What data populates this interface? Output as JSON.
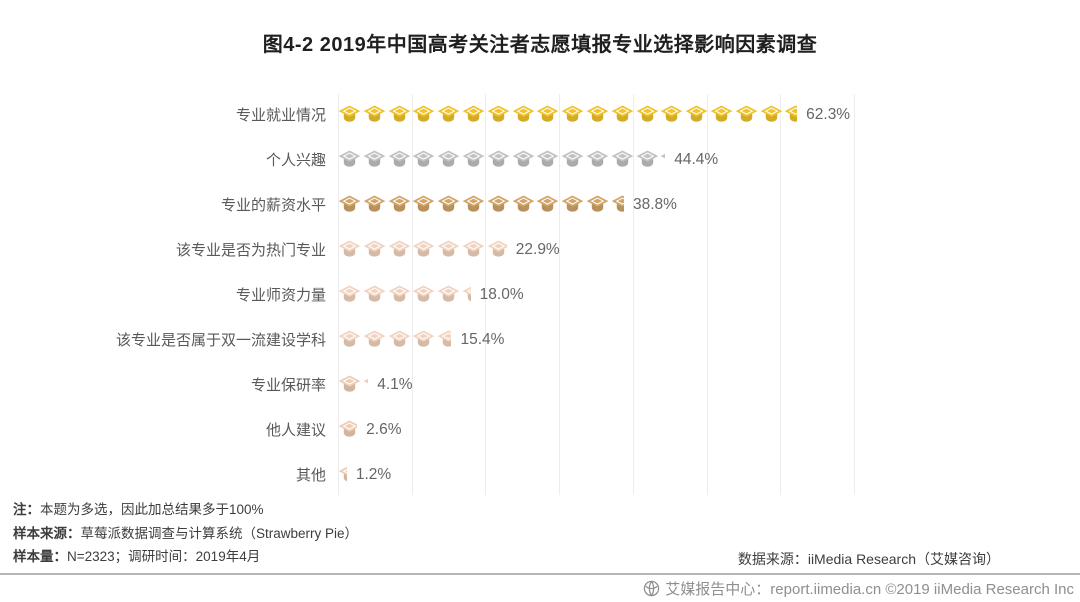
{
  "title": "图4-2 2019年中国高考关注者志愿填报专业选择影响因素调查",
  "chart_data": {
    "type": "bar",
    "subtype": "pictogram",
    "icon": "graduation-cap",
    "orientation": "horizontal",
    "title": "图4-2 2019年中国高考关注者志愿填报专业选择影响因素调查",
    "categories": [
      "专业就业情况",
      "个人兴趣",
      "专业的薪资水平",
      "该专业是否为热门专业",
      "专业师资力量",
      "该专业是否属于双一流建设学科",
      "专业保研率",
      "他人建议",
      "其他"
    ],
    "values": [
      62.3,
      44.4,
      38.8,
      22.9,
      18.0,
      15.4,
      4.1,
      2.6,
      1.2
    ],
    "value_labels": [
      "62.3%",
      "44.4%",
      "38.8%",
      "22.9%",
      "18.0%",
      "15.4%",
      "4.1%",
      "2.6%",
      "1.2%"
    ],
    "unit": "%",
    "xlim": [
      0,
      70
    ],
    "gridline_step": 10,
    "grid": true,
    "legend": false,
    "bar_colors": [
      "#F0C32C",
      "#C4C2C0",
      "#D2A569",
      "#F2D3BF",
      "#F2D3BF",
      "#F2D3BF",
      "#EFCDB5",
      "#EFCDB5",
      "#EFCDB5"
    ]
  },
  "footnotes": [
    {
      "label": "注：",
      "text": "本题为多选，因此加总结果多于100%"
    },
    {
      "label": "样本来源：",
      "text": "草莓派数据调查与计算系统（Strawberry Pie）"
    },
    {
      "label": "样本量：",
      "text": "N=2323；调研时间：2019年4月"
    }
  ],
  "data_source": "数据来源：iiMedia Research（艾媒咨询）",
  "watermark": "艾媒报告中心：report.iimedia.cn  ©2019  iiMedia Research Inc"
}
